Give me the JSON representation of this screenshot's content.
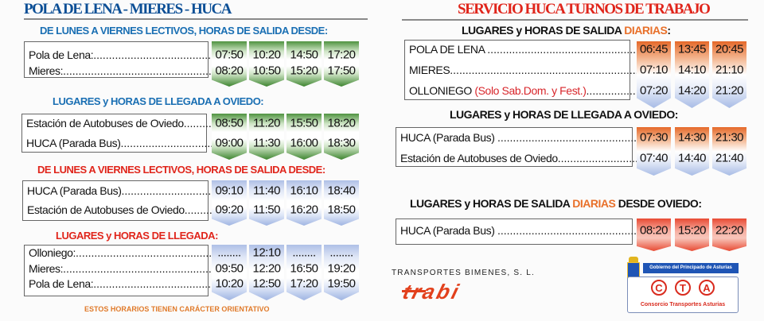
{
  "left": {
    "title": "POLA DE LENA - MIERES - HUCA",
    "tables": [
      {
        "heading": "DE LUNES A VIERNES LECTIVOS, HORAS DE SALIDA DESDE:",
        "rows": [
          {
            "label": "Pola de Lena:",
            "times": [
              "07:50",
              "10:20",
              "14:50",
              "17:20"
            ]
          },
          {
            "label": "Mieres:",
            "times": [
              "08:20",
              "10:50",
              "15:20",
              "17:50"
            ]
          }
        ]
      },
      {
        "heading": "LUGARES y HORAS DE LLEGADA A OVIEDO:",
        "rows": [
          {
            "label": "Estación de Autobuses de Oviedo",
            "times": [
              "08:50",
              "11:20",
              "15:50",
              "18:20"
            ]
          },
          {
            "label": "HUCA (Parada Bus)",
            "times": [
              "09:00",
              "11:30",
              "16:00",
              "18:30"
            ]
          }
        ]
      },
      {
        "heading": "DE LUNES A VIERNES LECTIVOS, HORAS DE SALIDA DESDE:",
        "rows": [
          {
            "label": "HUCA (Parada Bus)",
            "times": [
              "09:10",
              "11:40",
              "16:10",
              "18:40"
            ]
          },
          {
            "label": "Estación de Autobuses de Oviedo",
            "times": [
              "09:20",
              "11:50",
              "16:20",
              "18:50"
            ]
          }
        ]
      },
      {
        "heading": "LUGARES y HORAS DE LLEGADA:",
        "rows": [
          {
            "label": "Olloniego:",
            "times": [
              "........",
              "12:10",
              "........",
              "........"
            ]
          },
          {
            "label": "Mieres:",
            "times": [
              "09:50",
              "12:20",
              "16:50",
              "19:20"
            ]
          },
          {
            "label": "Pola de Lena:",
            "times": [
              "10:20",
              "12:50",
              "17:20",
              "19:50"
            ]
          }
        ]
      }
    ],
    "footer": "ESTOS HORARIOS TIENEN CARÁCTER ORIENTATIVO"
  },
  "right": {
    "title": "SERVICIO HUCA TURNOS DE TRABAJO",
    "tables": [
      {
        "heading": "LUGARES y HORAS DE SALIDA ",
        "heading_highlight": "DIARIAS",
        "heading_tail": ":",
        "rows": [
          {
            "label": "POLA DE LENA ",
            "times": [
              "06:45",
              "13:45",
              "20:45"
            ]
          },
          {
            "label": "MIERES",
            "times": [
              "07:10",
              "14:10",
              "21:10"
            ]
          },
          {
            "label": "OLLONIEGO ",
            "note": "(Solo Sab.Dom. y Fest.)",
            "times": [
              "07:20",
              "14:20",
              "21:20"
            ]
          }
        ]
      },
      {
        "heading": "LUGARES y HORAS DE LLEGADA A OVIEDO:",
        "rows": [
          {
            "label": "HUCA (Parada Bus) ",
            "times": [
              "07:30",
              "14:30",
              "21:30"
            ]
          },
          {
            "label": "Estación de Autobuses de Oviedo",
            "times": [
              "07:40",
              "14:40",
              "21:40"
            ]
          }
        ]
      },
      {
        "heading": "LUGARES y HORAS DE SALIDA ",
        "heading_highlight": "DIARIAS",
        "heading_tail": " DESDE OVIEDO:",
        "rows": [
          {
            "label": "HUCA (Parada Bus) ",
            "times": [
              "08:20",
              "15:20",
              "22:20"
            ]
          }
        ]
      }
    ]
  },
  "company": {
    "name": "TRANSPORTES BIMENES, S. L.",
    "logo": "trabi"
  },
  "cta": {
    "government": "Gobierno del Principado de Asturias",
    "letters": [
      "C",
      "T",
      "A"
    ],
    "name": "Consorcio Transportes Asturias"
  },
  "colors": {
    "blue_heading": "#1a6fb3",
    "red_heading": "#e0251b",
    "orange": "#e8702a",
    "title_blue": "#0c4f96"
  }
}
